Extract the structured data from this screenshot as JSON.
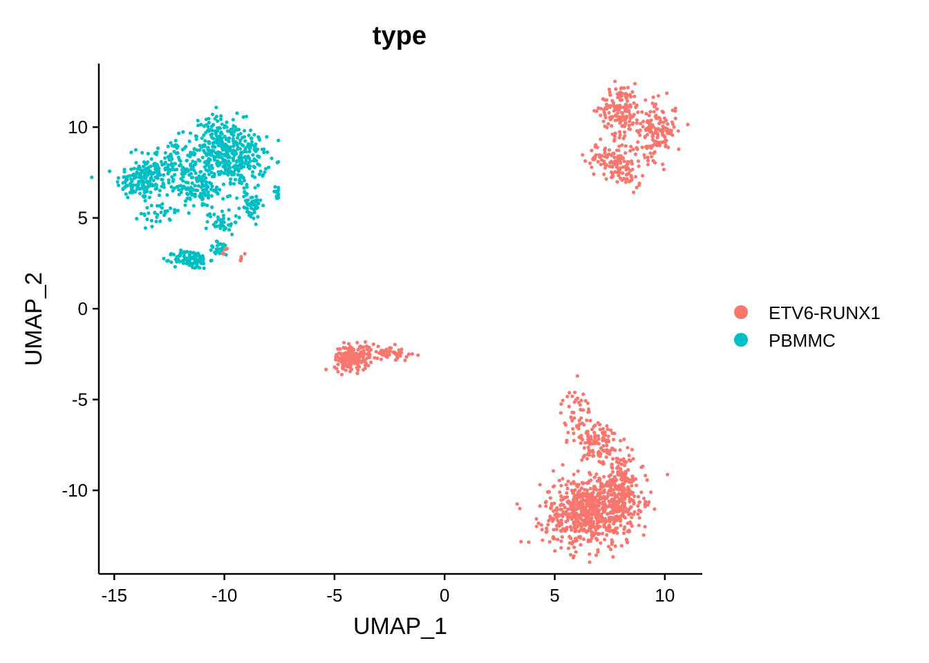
{
  "chart_data": {
    "type": "scatter",
    "title": "type",
    "xlabel": "UMAP_1",
    "ylabel": "UMAP_2",
    "xlim": [
      -15.7,
      11.7
    ],
    "ylim": [
      -14.6,
      13.5
    ],
    "xticks": [
      -15,
      -10,
      -5,
      0,
      5,
      10
    ],
    "yticks": [
      -10,
      -5,
      0,
      5,
      10
    ],
    "xtick_labels": [
      "-15",
      "-10",
      "-5",
      "0",
      "5",
      "10"
    ],
    "ytick_labels": [
      "-10",
      "-5",
      "0",
      "5",
      "10"
    ],
    "grid": false,
    "legend_position": "right",
    "series": [
      {
        "name": "ETV6-RUNX1",
        "color": "#F8766D",
        "clusters": [
          {
            "cx": 8.0,
            "cy": 11.0,
            "sx": 0.45,
            "sy": 0.7,
            "n": 140
          },
          {
            "cx": 9.6,
            "cy": 9.8,
            "sx": 0.45,
            "sy": 0.8,
            "n": 150
          },
          {
            "cx": 7.6,
            "cy": 8.2,
            "sx": 0.6,
            "sy": 0.45,
            "n": 110
          },
          {
            "cx": 8.3,
            "cy": 7.2,
            "sx": 0.3,
            "sy": 0.35,
            "n": 30
          },
          {
            "cx": -4.2,
            "cy": -2.7,
            "sx": 0.4,
            "sy": 0.35,
            "n": 190
          },
          {
            "cx": -2.6,
            "cy": -2.4,
            "sx": 0.55,
            "sy": 0.18,
            "n": 60
          },
          {
            "cx": 6.0,
            "cy": -6.0,
            "sx": 0.35,
            "sy": 0.8,
            "n": 60
          },
          {
            "cx": 7.0,
            "cy": -7.5,
            "sx": 0.4,
            "sy": 0.8,
            "n": 100
          },
          {
            "cx": 6.5,
            "cy": -11.2,
            "sx": 1.0,
            "sy": 0.95,
            "n": 600
          },
          {
            "cx": 8.0,
            "cy": -10.0,
            "sx": 0.5,
            "sy": 1.1,
            "n": 220
          },
          {
            "cx": -10.0,
            "cy": 3.1,
            "sx": 0.15,
            "sy": 0.1,
            "n": 4
          },
          {
            "cx": -9.3,
            "cy": 2.8,
            "sx": 0.12,
            "sy": 0.1,
            "n": 4
          }
        ]
      },
      {
        "name": "PBMMC",
        "color": "#00BFC4",
        "clusters": [
          {
            "cx": -13.8,
            "cy": 7.0,
            "sx": 0.55,
            "sy": 0.5,
            "n": 130
          },
          {
            "cx": -12.5,
            "cy": 7.8,
            "sx": 0.7,
            "sy": 0.8,
            "n": 150
          },
          {
            "cx": -10.3,
            "cy": 8.8,
            "sx": 0.6,
            "sy": 0.9,
            "n": 240
          },
          {
            "cx": -9.2,
            "cy": 8.2,
            "sx": 0.55,
            "sy": 0.8,
            "n": 180
          },
          {
            "cx": -11.2,
            "cy": 6.5,
            "sx": 0.6,
            "sy": 0.5,
            "n": 100
          },
          {
            "cx": -8.8,
            "cy": 5.7,
            "sx": 0.25,
            "sy": 0.4,
            "n": 50
          },
          {
            "cx": -10.1,
            "cy": 4.8,
            "sx": 0.35,
            "sy": 0.35,
            "n": 40
          },
          {
            "cx": -13.0,
            "cy": 5.3,
            "sx": 0.4,
            "sy": 0.35,
            "n": 30
          },
          {
            "cx": -11.5,
            "cy": 2.7,
            "sx": 0.4,
            "sy": 0.25,
            "n": 110
          },
          {
            "cx": -10.2,
            "cy": 3.3,
            "sx": 0.25,
            "sy": 0.2,
            "n": 30
          },
          {
            "cx": -7.6,
            "cy": 6.4,
            "sx": 0.1,
            "sy": 0.2,
            "n": 12
          }
        ]
      }
    ]
  }
}
